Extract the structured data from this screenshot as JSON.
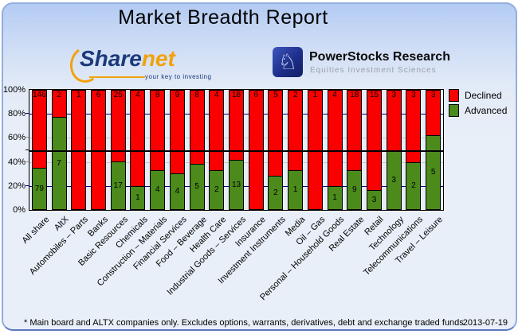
{
  "title": "Market Breadth Report",
  "logos": {
    "sharenet": {
      "name_primary": "Share",
      "name_secondary": "net",
      "tagline": "your key to investing",
      "brand_blue": "#1B3A7A",
      "brand_orange": "#F2A208"
    },
    "powerstocks": {
      "name": "PowerStocks  Research",
      "tagline": "Equities Investment Sciences",
      "icon": "knight-chess-icon"
    }
  },
  "chart_data": {
    "type": "bar",
    "stacked": true,
    "normalized": "percent",
    "title": "",
    "xlabel": "",
    "ylabel": "",
    "ylim": [
      0,
      100
    ],
    "y_ticks": [
      {
        "label": "100%",
        "value": 100
      },
      {
        "label": "80%",
        "value": 80
      },
      {
        "label": "60%",
        "value": 60
      },
      {
        "label": "40%",
        "value": 40
      },
      {
        "label": "20%",
        "value": 20
      },
      {
        "label": "0%",
        "value": 0
      }
    ],
    "midline_value": 50,
    "gridlines": [
      {
        "value": 80,
        "color": "#00008B"
      },
      {
        "value": 60,
        "color": "#C9C9C9"
      },
      {
        "value": 40,
        "color": "#C9C9C9"
      },
      {
        "value": 20,
        "color": "#00008B"
      }
    ],
    "legend_position": "top-right",
    "categories": [
      "All share",
      "AltX",
      "Automobiles – Parts",
      "Banks",
      "Basic Resources",
      "Chemicals",
      "Construction – Materials",
      "Financial Services",
      "Food – Beverage",
      "Health Care",
      "Industrial Goods – Services",
      "Insurance",
      "Investment Instruments",
      "Media",
      "Oil – Gas",
      "Personal – Household Goods",
      "Real Estate",
      "Retail",
      "Technology",
      "Telecommunications",
      "Travel – Leisure"
    ],
    "series": [
      {
        "name": "Declined",
        "color": "#FB0000",
        "values": [
          146,
          2,
          1,
          6,
          25,
          4,
          8,
          9,
          8,
          4,
          18,
          6,
          5,
          2,
          1,
          4,
          18,
          15,
          3,
          3,
          3
        ]
      },
      {
        "name": "Advanced",
        "color": "#4B8A1B",
        "values": [
          79,
          7,
          0,
          0,
          17,
          1,
          4,
          4,
          5,
          2,
          13,
          0,
          2,
          1,
          0,
          1,
          9,
          3,
          3,
          2,
          5
        ]
      }
    ]
  },
  "footer": {
    "note": "* Main board and ALTX companies only. Excludes options, warrants, derivatives, debt and exchange traded funds",
    "date": "2013-07-19"
  }
}
